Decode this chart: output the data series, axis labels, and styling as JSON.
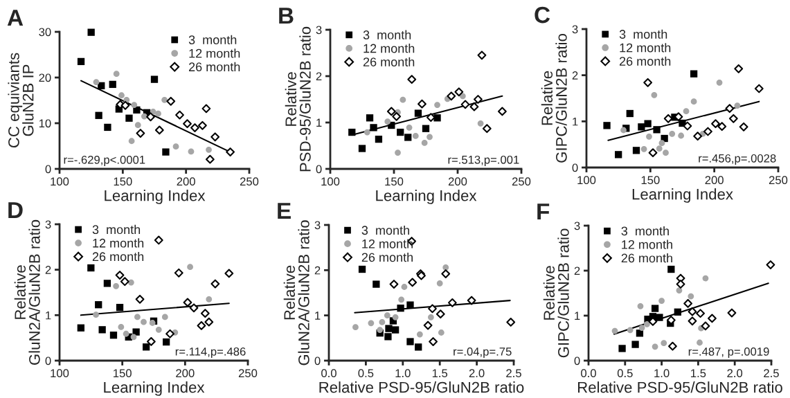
{
  "chart_data": [
    {
      "type": "scatter",
      "title": "A",
      "xlabel": "Learning Index",
      "ylabel": "CC equiviants\nGluN2B IP",
      "xlim": [
        100,
        250
      ],
      "ylim": [
        0,
        30
      ],
      "xticks": [
        100,
        150,
        200,
        250
      ],
      "yticks": [
        0,
        10,
        20,
        30
      ],
      "legend": "top right",
      "annotations": [
        "r=-.629,p<.0001"
      ],
      "series": [
        {
          "name": "3  month",
          "type": "scatter",
          "marker": "square",
          "color": "#000000",
          "x": [
            117,
            125,
            131,
            133,
            138,
            142,
            147,
            155,
            161,
            169,
            175,
            184
          ],
          "values": [
            23.5,
            29.9,
            11.7,
            18.2,
            9.1,
            18.5,
            13.1,
            11.1,
            12.9,
            12.3,
            19.6,
            3.7
          ]
        },
        {
          "name": "12 month",
          "type": "scatter",
          "marker": "circle",
          "color": "#a6a6a6",
          "x": [
            129,
            145,
            149,
            153,
            159,
            162,
            157,
            167,
            174,
            178,
            183,
            192,
            204,
            218
          ],
          "values": [
            19.0,
            20.8,
            16.1,
            15.1,
            14.0,
            9.6,
            6.1,
            11.5,
            12.5,
            12.1,
            15.1,
            4.9,
            3.8,
            4.2
          ]
        },
        {
          "name": "26 month",
          "type": "scatter",
          "marker": "diamond",
          "color": "#000000",
          "x": [
            148,
            152,
            164,
            172,
            179,
            188,
            195,
            201,
            207,
            213,
            216,
            223,
            219,
            235
          ],
          "values": [
            14.1,
            13.9,
            7.8,
            11.4,
            8.5,
            14.8,
            11.8,
            9.9,
            9.0,
            9.5,
            13.2,
            7.0,
            2.1,
            3.7
          ]
        },
        {
          "type": "line",
          "marker": "none",
          "color": "#000000",
          "x": [
            117,
            235
          ],
          "values": [
            19.3,
            3.7
          ]
        }
      ]
    },
    {
      "type": "scatter",
      "title": "B",
      "xlabel": "Learning Index",
      "ylabel": "Relative\nPSD-95/GluN2B ratio",
      "xlim": [
        100,
        250
      ],
      "ylim": [
        0,
        3
      ],
      "xticks": [
        100,
        150,
        200,
        250
      ],
      "yticks": [
        0,
        1,
        2,
        3
      ],
      "legend": "top left",
      "annotations": [
        "r=.513,p=.001"
      ],
      "series": [
        {
          "name": "3  month",
          "type": "scatter",
          "marker": "square",
          "color": "#000000",
          "x": [
            117,
            125,
            131,
            134,
            138,
            148,
            155,
            161,
            169,
            175,
            184
          ],
          "values": [
            0.79,
            0.44,
            1.1,
            0.89,
            0.64,
            0.94,
            0.79,
            0.68,
            1.2,
            0.87,
            1.1
          ]
        },
        {
          "name": "12 month",
          "type": "scatter",
          "marker": "circle",
          "color": "#a6a6a6",
          "x": [
            129,
            145,
            153,
            153,
            157,
            162,
            167,
            174,
            178,
            184,
            192,
            204,
            218
          ],
          "values": [
            0.79,
            1.02,
            1.22,
            0.35,
            1.49,
            0.89,
            0.71,
            0.56,
            0.69,
            1.38,
            1.51,
            1.57,
            0.98
          ]
        },
        {
          "name": "26 month",
          "type": "scatter",
          "marker": "diamond",
          "color": "#000000",
          "x": [
            148,
            152,
            164,
            172,
            179,
            195,
            201,
            206,
            213,
            216,
            219,
            223,
            235
          ],
          "values": [
            1.24,
            1.13,
            1.93,
            1.4,
            1.11,
            1.57,
            1.66,
            1.39,
            1.34,
            1.5,
            2.45,
            0.87,
            1.24
          ]
        },
        {
          "type": "line",
          "marker": "none",
          "color": "#000000",
          "x": [
            117,
            235
          ],
          "values": [
            0.73,
            1.57
          ]
        }
      ]
    },
    {
      "type": "scatter",
      "title": "C",
      "xlabel": "Learning Index",
      "ylabel": "Relative\nGIPC/GluN2B ratio",
      "xlim": [
        100,
        250
      ],
      "ylim": [
        0,
        3
      ],
      "xticks": [
        100,
        150,
        200,
        250
      ],
      "yticks": [
        0,
        1,
        2,
        3
      ],
      "legend": "top left",
      "annotations": [
        "r=.456,p=.0028"
      ],
      "series": [
        {
          "name": "3  month",
          "type": "scatter",
          "marker": "square",
          "color": "#000000",
          "x": [
            116,
            125,
            131,
            134,
            139,
            143,
            148,
            155,
            161,
            169,
            175,
            184
          ],
          "values": [
            0.91,
            0.28,
            0.85,
            1.17,
            0.37,
            0.88,
            0.95,
            0.82,
            0.63,
            1.09,
            0.96,
            2.03
          ]
        },
        {
          "name": "12 month",
          "type": "scatter",
          "marker": "circle",
          "color": "#a6a6a6",
          "x": [
            129,
            145,
            149,
            153,
            157,
            159,
            162,
            167,
            174,
            178,
            184,
            191,
            204,
            218
          ],
          "values": [
            0.81,
            0.4,
            0.67,
            1.57,
            0.41,
            0.53,
            0.32,
            0.73,
            0.69,
            1.22,
            1.43,
            0.73,
            1.84,
            1.34
          ]
        },
        {
          "name": "26 month",
          "type": "scatter",
          "marker": "diamond",
          "color": "#000000",
          "x": [
            148,
            152,
            164,
            172,
            179,
            187,
            195,
            201,
            206,
            212,
            215,
            219,
            223,
            235
          ],
          "values": [
            1.84,
            0.32,
            1.06,
            1.1,
            0.9,
            0.68,
            0.78,
            0.95,
            0.89,
            1.28,
            1.06,
            2.14,
            0.88,
            1.71
          ]
        },
        {
          "type": "line",
          "marker": "none",
          "color": "#000000",
          "x": [
            117,
            235
          ],
          "values": [
            0.59,
            1.43
          ]
        }
      ]
    },
    {
      "type": "scatter",
      "title": "D",
      "xlabel": "Learning Index",
      "ylabel": "Relative\nGluN2A/GluN2B ratio",
      "xlim": [
        100,
        250
      ],
      "ylim": [
        0,
        3
      ],
      "xticks": [
        100,
        150,
        200,
        250
      ],
      "yticks": [
        0,
        1,
        2,
        3
      ],
      "legend": "top left",
      "annotations": [
        "r=.114,p=.486"
      ],
      "series": [
        {
          "name": "3  month",
          "type": "scatter",
          "marker": "square",
          "color": "#000000",
          "x": [
            117,
            125,
            131,
            134,
            138,
            143,
            148,
            155,
            161,
            169,
            175,
            185
          ],
          "values": [
            0.72,
            2.04,
            1.23,
            0.68,
            1.7,
            0.56,
            1.17,
            0.52,
            0.63,
            0.3,
            0.87,
            0.41
          ]
        },
        {
          "name": "12 month",
          "type": "scatter",
          "marker": "circle",
          "color": "#a6a6a6",
          "x": [
            129,
            145,
            149,
            153,
            157,
            159,
            162,
            167,
            174,
            179,
            184,
            192,
            204,
            219
          ],
          "values": [
            1.01,
            1.64,
            0.74,
            0.59,
            1.72,
            0.52,
            0.96,
            0.85,
            0.83,
            0.68,
            0.96,
            0.62,
            2.06,
            1.35
          ]
        },
        {
          "name": "26 month",
          "type": "scatter",
          "marker": "diamond",
          "color": "#000000",
          "x": [
            148,
            152,
            164,
            173,
            179,
            188,
            195,
            202,
            207,
            213,
            216,
            219,
            224,
            235
          ],
          "values": [
            1.88,
            1.74,
            1.35,
            0.42,
            2.65,
            0.59,
            1.93,
            1.28,
            1.16,
            0.77,
            1.04,
            0.85,
            1.69,
            1.92
          ]
        },
        {
          "type": "line",
          "marker": "none",
          "color": "#000000",
          "x": [
            117,
            235
          ],
          "values": [
            1.0,
            1.26
          ]
        }
      ]
    },
    {
      "type": "scatter",
      "title": "E",
      "xlabel": "Relative PSD-95/GluN2B ratio",
      "ylabel": "Relative\nGluN2A/GluN2B ratio",
      "xlim": [
        0,
        2.5
      ],
      "ylim": [
        0,
        3
      ],
      "xticks": [
        {
          "value": 0,
          "label": "0.0"
        },
        0.5,
        {
          "value": 1,
          "label": "1.0"
        },
        1.5,
        {
          "value": 2,
          "label": "2.0"
        },
        2.5
      ],
      "yticks": [
        0,
        1,
        2,
        3
      ],
      "legend": "top left",
      "annotations": [
        "r=.04,p=.75"
      ],
      "series": [
        {
          "name": "3  month",
          "type": "scatter",
          "marker": "square",
          "color": "#000000",
          "x": [
            0.45,
            0.64,
            0.69,
            0.8,
            0.81,
            0.87,
            0.9,
            0.97,
            1.1,
            1.1,
            1.21
          ],
          "values": [
            2.02,
            1.69,
            0.61,
            0.53,
            0.71,
            0.88,
            0.68,
            1.16,
            1.23,
            0.42,
            0.3
          ]
        },
        {
          "name": "12 month",
          "type": "scatter",
          "marker": "circle",
          "color": "#a6a6a6",
          "x": [
            0.36,
            0.57,
            0.69,
            0.72,
            0.79,
            0.9,
            0.98,
            1.02,
            1.23,
            1.38,
            1.5,
            1.52,
            1.58
          ],
          "values": [
            0.74,
            0.83,
            0.68,
            0.85,
            1.0,
            0.96,
            1.35,
            1.63,
            0.58,
            0.96,
            1.71,
            0.62,
            2.06
          ]
        },
        {
          "name": "26 month",
          "type": "scatter",
          "marker": "diamond",
          "color": "#000000",
          "x": [
            0.88,
            1.12,
            1.13,
            1.24,
            1.25,
            1.34,
            1.4,
            1.41,
            1.51,
            1.58,
            1.67,
            1.93,
            2.46
          ],
          "values": [
            1.69,
            2.64,
            1.73,
            1.92,
            1.88,
            0.78,
            1.15,
            0.42,
            1.03,
            1.92,
            1.28,
            1.33,
            0.85
          ]
        },
        {
          "type": "line",
          "marker": "none",
          "color": "#000000",
          "x": [
            0.35,
            2.45
          ],
          "values": [
            1.06,
            1.33
          ]
        }
      ]
    },
    {
      "type": "scatter",
      "title": "F",
      "xlabel": "Relative PSD-95/GluN2B ratio",
      "ylabel": "Relative\nGIPC/GluN2B ratio",
      "xlim": [
        0,
        2.5
      ],
      "ylim": [
        0,
        3
      ],
      "xticks": [
        {
          "value": 0,
          "label": "0.0"
        },
        0.5,
        {
          "value": 1,
          "label": "1.0"
        },
        1.5,
        {
          "value": 2,
          "label": "2.0"
        },
        2.5
      ],
      "yticks": [
        0,
        1,
        2,
        3
      ],
      "legend": "top left",
      "annotations": [
        "r=.487, p=.0019"
      ],
      "series": [
        {
          "name": "3  month",
          "type": "scatter",
          "marker": "square",
          "color": "#000000",
          "x": [
            0.46,
            0.64,
            0.7,
            0.81,
            0.88,
            0.91,
            0.97,
            1.12,
            1.13,
            1.22
          ],
          "values": [
            0.27,
            0.36,
            0.61,
            0.92,
            0.98,
            1.16,
            0.96,
            0.83,
            2.03,
            1.08
          ]
        },
        {
          "name": "12 month",
          "type": "scatter",
          "marker": "circle",
          "color": "#a6a6a6",
          "x": [
            0.36,
            0.57,
            0.71,
            0.73,
            0.8,
            0.91,
            1.0,
            1.03,
            1.24,
            1.4,
            1.52,
            1.54,
            1.6
          ],
          "values": [
            0.66,
            0.68,
            1.21,
            0.73,
            0.81,
            0.31,
            1.33,
            0.39,
            1.56,
            1.43,
            0.4,
            0.72,
            1.83
          ]
        },
        {
          "name": "26 month",
          "type": "scatter",
          "marker": "diamond",
          "color": "#000000",
          "x": [
            0.88,
            1.13,
            1.15,
            1.26,
            1.26,
            1.36,
            1.42,
            1.42,
            1.53,
            1.6,
            1.69,
            1.96,
            2.49
          ],
          "values": [
            0.87,
            0.9,
            0.32,
            1.83,
            1.7,
            1.27,
            1.09,
            0.88,
            1.05,
            0.77,
            0.94,
            1.06,
            2.13
          ]
        },
        {
          "type": "line",
          "marker": "none",
          "color": "#000000",
          "x": [
            0.35,
            2.46
          ],
          "values": [
            0.59,
            1.72
          ]
        }
      ]
    }
  ]
}
